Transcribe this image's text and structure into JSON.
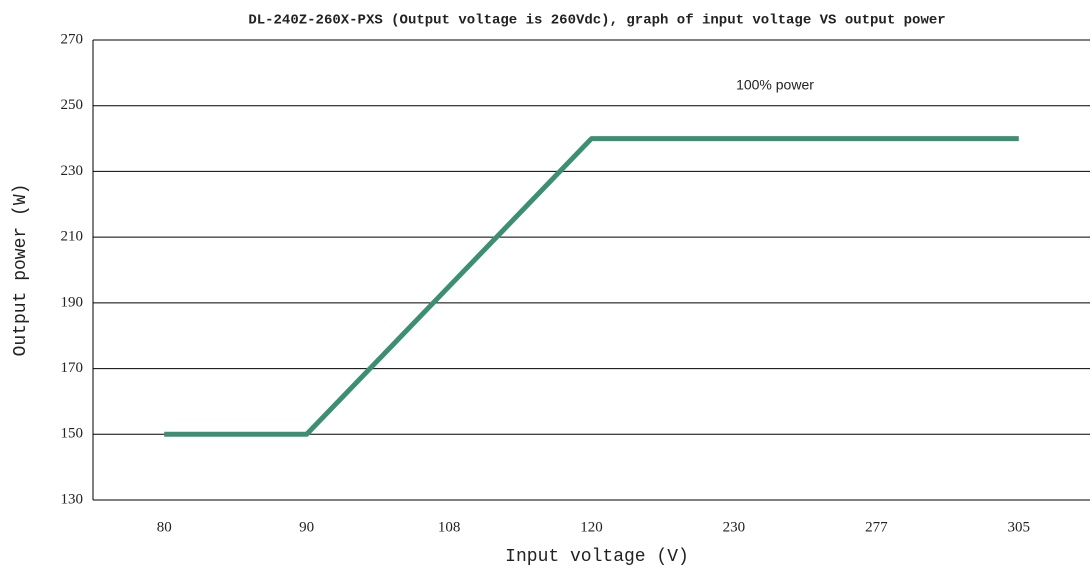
{
  "chart_data": {
    "type": "line",
    "title": "DL-240Z-260X-PXS (Output voltage is 260Vdc), graph of input voltage VS output power",
    "x_label": "Input voltage (V)",
    "y_label": "Output power (W)",
    "annotation": "100% power",
    "categories": [
      "80",
      "90",
      "108",
      "120",
      "230",
      "277",
      "305"
    ],
    "series": [
      {
        "name": "Output power",
        "color": "#3d8f73",
        "values": [
          150,
          150,
          195,
          240,
          240,
          240,
          240
        ]
      }
    ],
    "ylim": [
      130,
      270
    ],
    "yticks": [
      130,
      150,
      170,
      190,
      210,
      230,
      250,
      270
    ],
    "grid": true
  }
}
